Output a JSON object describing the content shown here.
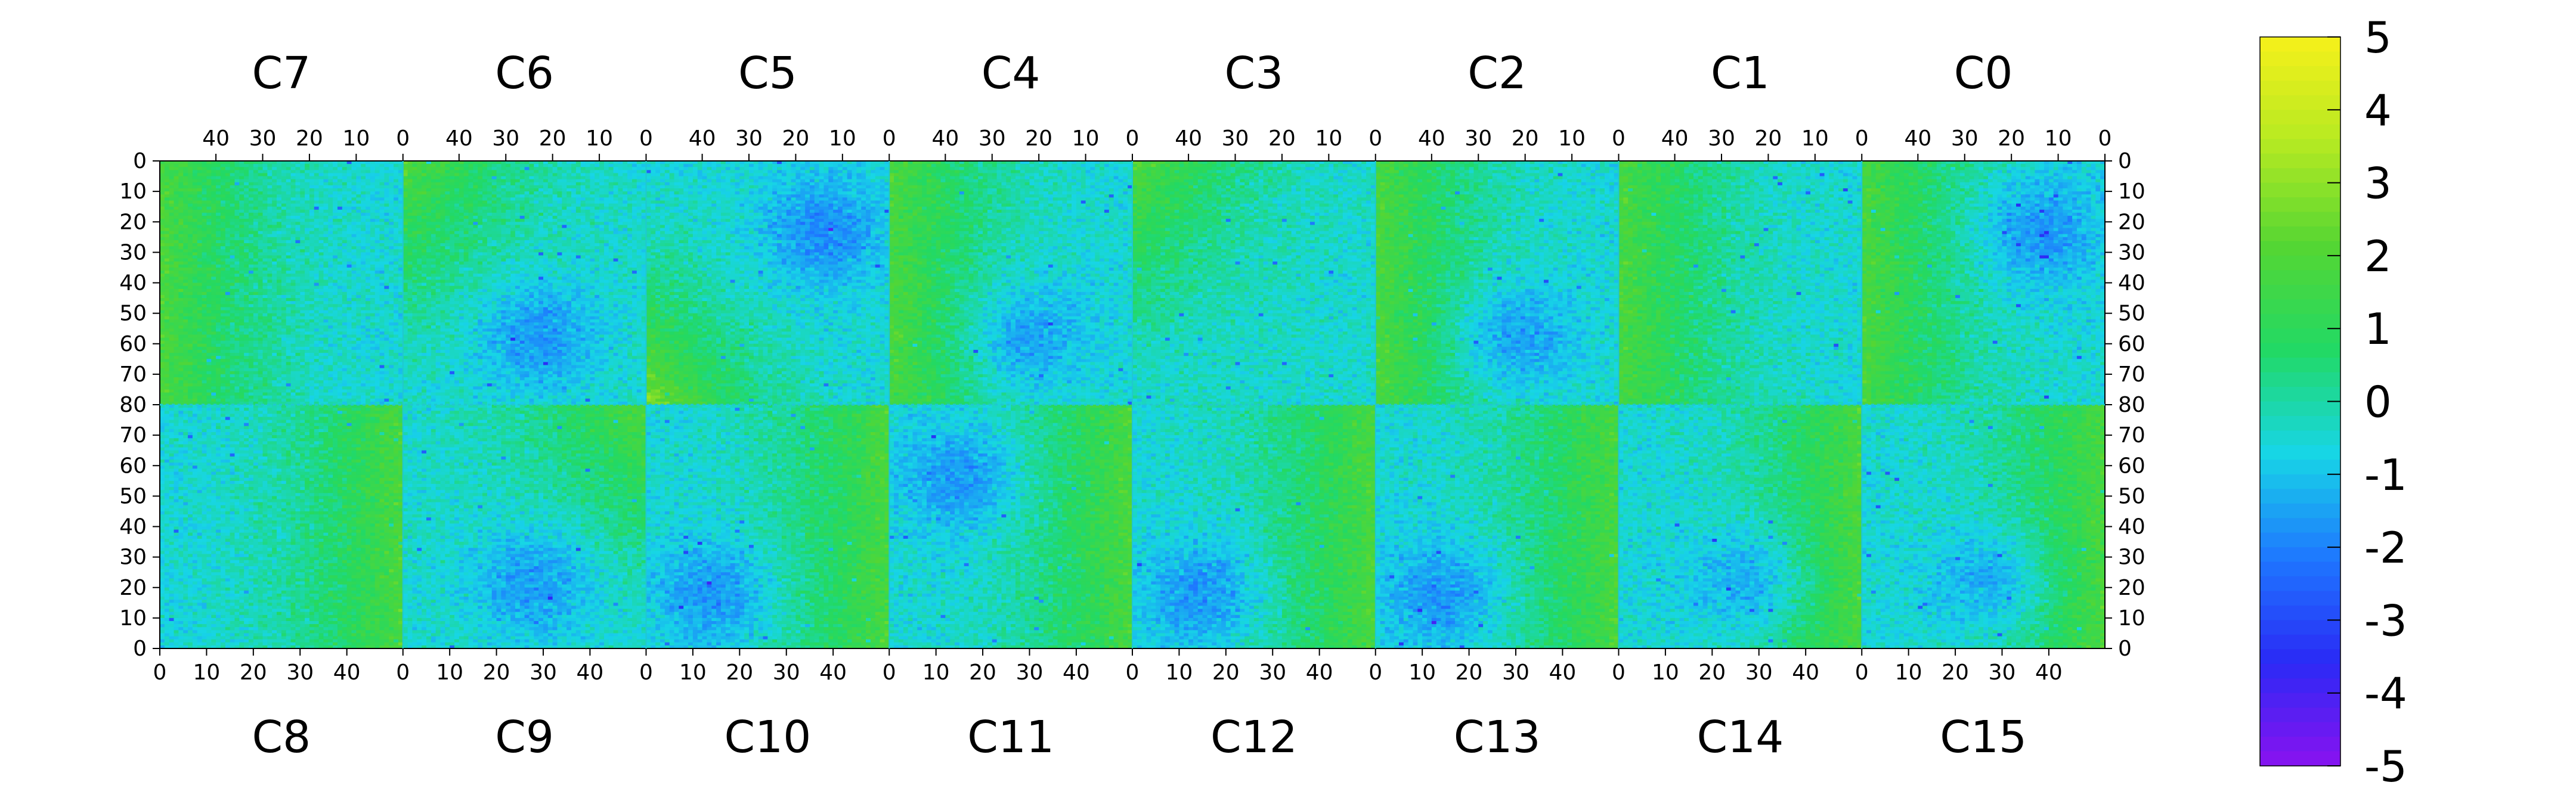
{
  "chart_data": {
    "type": "heatmap",
    "title": "",
    "chips_top": [
      "C7",
      "C6",
      "C5",
      "C4",
      "C3",
      "C2",
      "C1",
      "C0"
    ],
    "chips_bottom": [
      "C8",
      "C9",
      "C10",
      "C11",
      "C12",
      "C13",
      "C14",
      "C15"
    ],
    "columns_per_chip": 52,
    "rows_per_half": 80,
    "top_x_ticks": [
      "40",
      "30",
      "20",
      "10",
      "0"
    ],
    "bottom_x_ticks": [
      "0",
      "10",
      "20",
      "30",
      "40"
    ],
    "top_y_ticks": [
      "0",
      "10",
      "20",
      "30",
      "40",
      "50",
      "60",
      "70",
      "80"
    ],
    "bottom_y_ticks": [
      "70",
      "60",
      "50",
      "40",
      "30",
      "20",
      "10",
      "0"
    ],
    "zlim": [
      -5,
      5
    ],
    "colorbar_ticks": [
      "5",
      "4",
      "3",
      "2",
      "1",
      "0",
      "-1",
      "-2",
      "-3",
      "-4",
      "-5"
    ],
    "color_stops": [
      "#8a12f0",
      "#2a2af5",
      "#1e78ff",
      "#17d6e6",
      "#22d964",
      "#55d633",
      "#b6ea22",
      "#f6f01a"
    ],
    "colorbar_levels": 50,
    "patterns": [
      {
        "chip": "C7",
        "trend": "left-high"
      },
      {
        "chip": "C6",
        "trend": "top-left-high",
        "low_region": "lower-middle"
      },
      {
        "chip": "C5",
        "trend": "bottom-left-high",
        "low_region": "upper-right"
      },
      {
        "chip": "C4",
        "trend": "left-high",
        "low_region": "lower-middle"
      },
      {
        "chip": "C3",
        "trend": "top-left-high"
      },
      {
        "chip": "C2",
        "trend": "left-high",
        "low_region": "lower-middle"
      },
      {
        "chip": "C1",
        "trend": "left-high"
      },
      {
        "chip": "C0",
        "trend": "left-high",
        "low_region": "upper-right"
      },
      {
        "chip": "C8",
        "trend": "right-high"
      },
      {
        "chip": "C9",
        "trend": "top-right-high",
        "low_region": "lower-middle"
      },
      {
        "chip": "C10",
        "trend": "right-high",
        "low_region": "lower-left"
      },
      {
        "chip": "C11",
        "trend": "right-high",
        "low_region": "upper-left"
      },
      {
        "chip": "C12",
        "trend": "right-high",
        "low_region": "lower-left"
      },
      {
        "chip": "C13",
        "trend": "right-high",
        "low_region": "lower-left"
      },
      {
        "chip": "C14",
        "trend": "right-high",
        "low_region": "lower-middle"
      },
      {
        "chip": "C15",
        "trend": "right-high",
        "low_region": "lower-middle"
      }
    ],
    "grid": false
  }
}
